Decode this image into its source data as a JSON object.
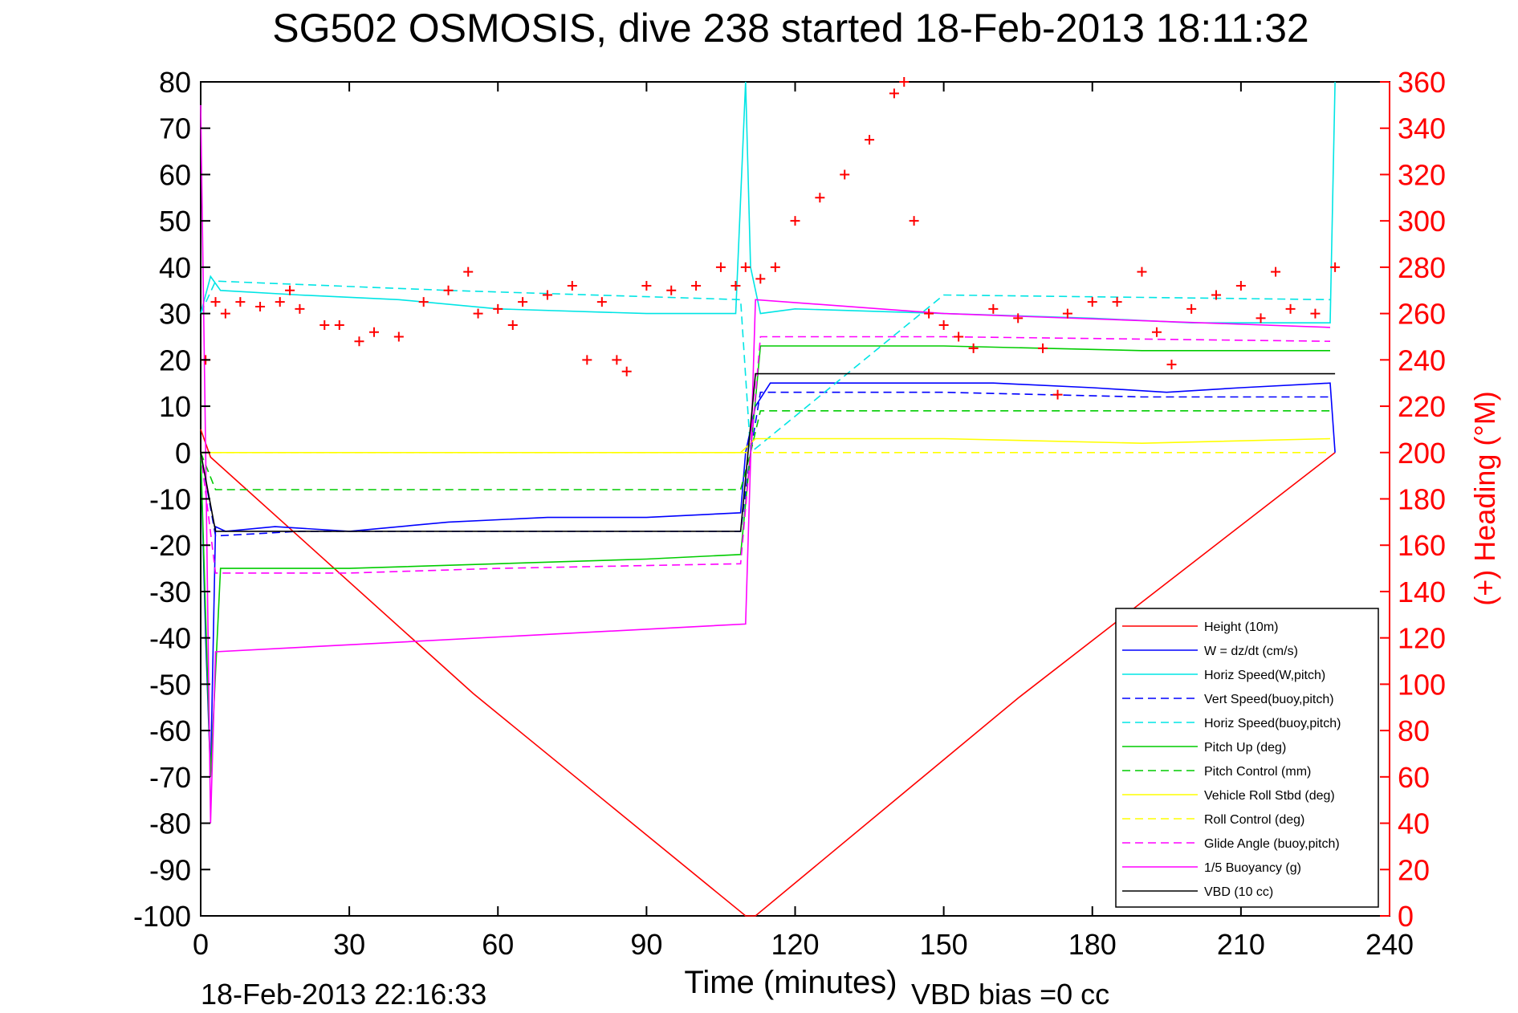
{
  "chart_data": {
    "type": "line",
    "title": "SG502 OSMOSIS, dive 238 started 18-Feb-2013 18:11:32",
    "xlabel": "Time (minutes)",
    "ylabel_right": "(+) Heading (°M)",
    "footer_date": "18-Feb-2013 22:16:33",
    "footer_vbd": "VBD bias =0 cc",
    "xlim": [
      0,
      240
    ],
    "ylim": [
      -100,
      80
    ],
    "y2lim": [
      0,
      360
    ],
    "xticks": [
      0,
      30,
      60,
      90,
      120,
      150,
      180,
      210,
      240
    ],
    "yticks": [
      80,
      70,
      60,
      50,
      40,
      30,
      20,
      10,
      0,
      -10,
      -20,
      -30,
      -40,
      -50,
      -60,
      -70,
      -80,
      -90,
      -100
    ],
    "y2ticks": [
      360,
      340,
      320,
      300,
      280,
      260,
      240,
      220,
      200,
      180,
      160,
      140,
      120,
      100,
      80,
      60,
      40,
      20,
      0
    ],
    "grid": false,
    "legend_position": "bottom-right",
    "colors": {
      "right_axis": "#ff0000",
      "heading_marker": "#ff0000"
    },
    "series": [
      {
        "name": "Height (10m)",
        "color": "#ff0000",
        "dash": "solid",
        "x": [
          0,
          2,
          55,
          110,
          112,
          165,
          229
        ],
        "y": [
          5,
          -1,
          -52,
          -100,
          -100,
          -53,
          0
        ]
      },
      {
        "name": "W = dz/dt (cm/s)",
        "color": "#0000ff",
        "dash": "solid",
        "x": [
          0,
          1,
          2,
          3,
          5,
          15,
          30,
          50,
          70,
          90,
          109,
          110,
          112,
          115,
          140,
          160,
          180,
          195,
          210,
          228,
          229
        ],
        "y": [
          0,
          -40,
          -70,
          -16,
          -17,
          -16,
          -17,
          -15,
          -14,
          -14,
          -13,
          0,
          10,
          15,
          15,
          15,
          14,
          13,
          14,
          15,
          0
        ]
      },
      {
        "name": "Horiz Speed(W,pitch)",
        "color": "#00e5e5",
        "dash": "solid",
        "x": [
          0,
          2,
          4,
          20,
          40,
          60,
          90,
          108,
          110,
          111,
          113,
          120,
          150,
          180,
          200,
          228,
          229
        ],
        "y": [
          30,
          38,
          35,
          34,
          33,
          31,
          30,
          30,
          80,
          40,
          30,
          31,
          30,
          29,
          28,
          28,
          80
        ]
      },
      {
        "name": "Vert Speed(buoy,pitch)",
        "color": "#0000ff",
        "dash": "dashed",
        "x": [
          0,
          3,
          20,
          50,
          80,
          109,
          111,
          113,
          150,
          190,
          228
        ],
        "y": [
          0,
          -18,
          -17,
          -17,
          -17,
          -17,
          0,
          13,
          13,
          12,
          12
        ]
      },
      {
        "name": "Horiz Speed(buoy,pitch)",
        "color": "#00e5e5",
        "dash": "dashed",
        "x": [
          0,
          3,
          50,
          109,
          111,
          150,
          228
        ],
        "y": [
          30,
          37,
          35,
          33,
          0,
          34,
          33
        ]
      },
      {
        "name": "Pitch Up (deg)",
        "color": "#00cc00",
        "dash": "solid",
        "x": [
          0,
          2,
          4,
          30,
          60,
          90,
          109,
          111,
          113,
          150,
          190,
          228
        ],
        "y": [
          0,
          -70,
          -25,
          -25,
          -24,
          -23,
          -22,
          0,
          23,
          23,
          22,
          22
        ]
      },
      {
        "name": "Pitch Control (mm)",
        "color": "#00cc00",
        "dash": "dashed",
        "x": [
          0,
          3,
          50,
          109,
          111,
          113,
          228
        ],
        "y": [
          0,
          -8,
          -8,
          -8,
          0,
          9,
          9
        ]
      },
      {
        "name": "Vehicle Roll Stbd (deg)",
        "color": "#ffff00",
        "dash": "solid",
        "x": [
          0,
          3,
          5,
          30,
          60,
          90,
          109,
          112,
          150,
          190,
          228
        ],
        "y": [
          0,
          0,
          0,
          0,
          0,
          0,
          0,
          3,
          3,
          2,
          3
        ]
      },
      {
        "name": "Roll Control (deg)",
        "color": "#ffff00",
        "dash": "dashed",
        "x": [
          0,
          3,
          50,
          109,
          112,
          228
        ],
        "y": [
          0,
          0,
          0,
          0,
          0,
          0
        ]
      },
      {
        "name": "Glide Angle (buoy,pitch)",
        "color": "#ff00ff",
        "dash": "dashed",
        "x": [
          0,
          3,
          30,
          60,
          109,
          111,
          113,
          150,
          228
        ],
        "y": [
          0,
          -26,
          -26,
          -25,
          -24,
          0,
          25,
          25,
          24
        ]
      },
      {
        "name": "1/5 Buoyancy (g)",
        "color": "#ff00ff",
        "dash": "solid",
        "x": [
          0,
          1,
          2,
          3,
          110,
          112,
          150,
          228
        ],
        "y": [
          75,
          0,
          -80,
          -43,
          -37,
          33,
          30,
          27
        ]
      },
      {
        "name": "VBD (10 cc)",
        "color": "#000000",
        "dash": "solid",
        "x": [
          0,
          3,
          109,
          112,
          229
        ],
        "y": [
          0,
          -17,
          -17,
          17,
          17
        ]
      }
    ],
    "heading": {
      "name": "(+) Heading",
      "marker": "+",
      "x": [
        1,
        3,
        5,
        8,
        12,
        16,
        18,
        20,
        25,
        28,
        32,
        35,
        40,
        45,
        50,
        54,
        56,
        60,
        63,
        65,
        70,
        75,
        78,
        81,
        84,
        86,
        90,
        95,
        100,
        105,
        108,
        110,
        113,
        116,
        120,
        125,
        130,
        135,
        140,
        142,
        144,
        147,
        150,
        153,
        156,
        160,
        165,
        170,
        173,
        175,
        180,
        185,
        190,
        193,
        196,
        200,
        205,
        210,
        214,
        217,
        220,
        225,
        229
      ],
      "y": [
        240,
        265,
        260,
        265,
        263,
        265,
        270,
        262,
        255,
        255,
        248,
        252,
        250,
        265,
        270,
        278,
        260,
        262,
        255,
        265,
        268,
        272,
        240,
        265,
        240,
        235,
        272,
        270,
        272,
        280,
        272,
        280,
        275,
        280,
        300,
        310,
        320,
        335,
        355,
        360,
        300,
        260,
        255,
        250,
        245,
        262,
        258,
        245,
        225,
        260,
        265,
        265,
        278,
        252,
        238,
        262,
        268,
        272,
        258,
        278,
        262,
        260,
        280
      ]
    }
  }
}
